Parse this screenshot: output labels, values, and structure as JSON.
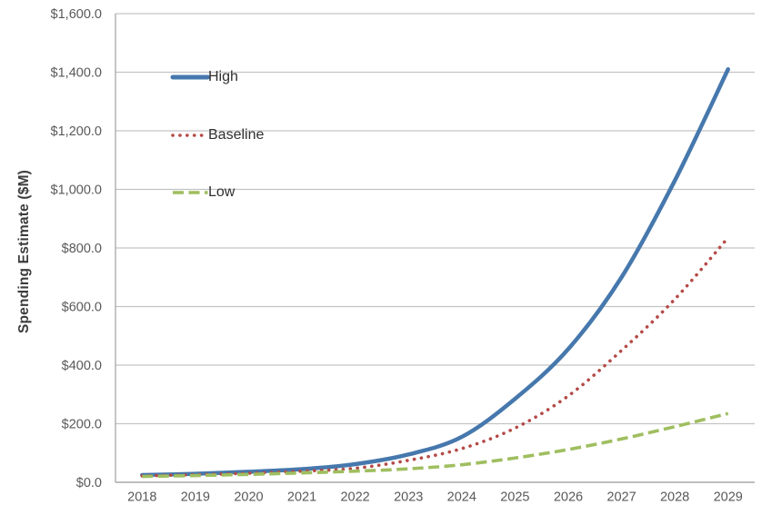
{
  "chart_data": {
    "type": "line",
    "title": "",
    "xlabel": "",
    "ylabel": "Spending Estimate ($M)",
    "categories": [
      "2018",
      "2019",
      "2020",
      "2021",
      "2022",
      "2023",
      "2024",
      "2025",
      "2026",
      "2027",
      "2028",
      "2029"
    ],
    "series": [
      {
        "name": "High",
        "color": "#4678ad",
        "dash": "solid",
        "width": 4.5,
        "values": [
          25,
          29,
          36,
          45,
          62,
          95,
          155,
          285,
          455,
          700,
          1030,
          1410
        ]
      },
      {
        "name": "Baseline",
        "color": "#b44a47",
        "dash": "dotted",
        "width": 3.6,
        "values": [
          22,
          26,
          31,
          38,
          48,
          75,
          115,
          185,
          295,
          450,
          625,
          835
        ]
      },
      {
        "name": "Low",
        "color": "#9fbe5f",
        "dash": "dashed",
        "width": 3.6,
        "values": [
          20,
          23,
          27,
          32,
          38,
          46,
          60,
          83,
          112,
          148,
          190,
          235
        ]
      }
    ],
    "ylim": [
      0,
      1600
    ],
    "ytick_step": 200,
    "ytick_labels": [
      "$0.0",
      "$200.0",
      "$400.0",
      "$600.0",
      "$800.0",
      "$1,000.0",
      "$1,200.0",
      "$1,400.0",
      "$1,600.0"
    ],
    "grid": true,
    "legend_position": "inside-top-left"
  },
  "colors": {
    "grid": "#c3c3c3",
    "axis": "#a0a0a0",
    "text": "#595959"
  }
}
